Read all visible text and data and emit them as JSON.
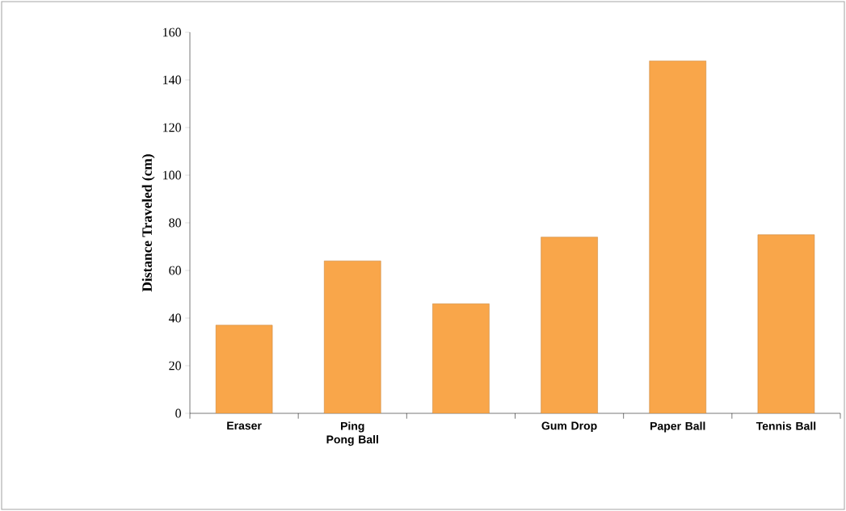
{
  "chart_data": {
    "type": "bar",
    "ylabel": "Distance Traveled (cm)",
    "categories": [
      "Eraser",
      "Ping Pong Ball",
      null,
      "Gum Drop",
      "Paper Ball",
      "Tennis Ball"
    ],
    "values": [
      37,
      64,
      46,
      74,
      148,
      75
    ],
    "color": "#f9a64a",
    "ylim": [
      0,
      160
    ],
    "yticks": [
      0,
      20,
      40,
      60,
      80,
      100,
      120,
      140,
      160
    ]
  }
}
